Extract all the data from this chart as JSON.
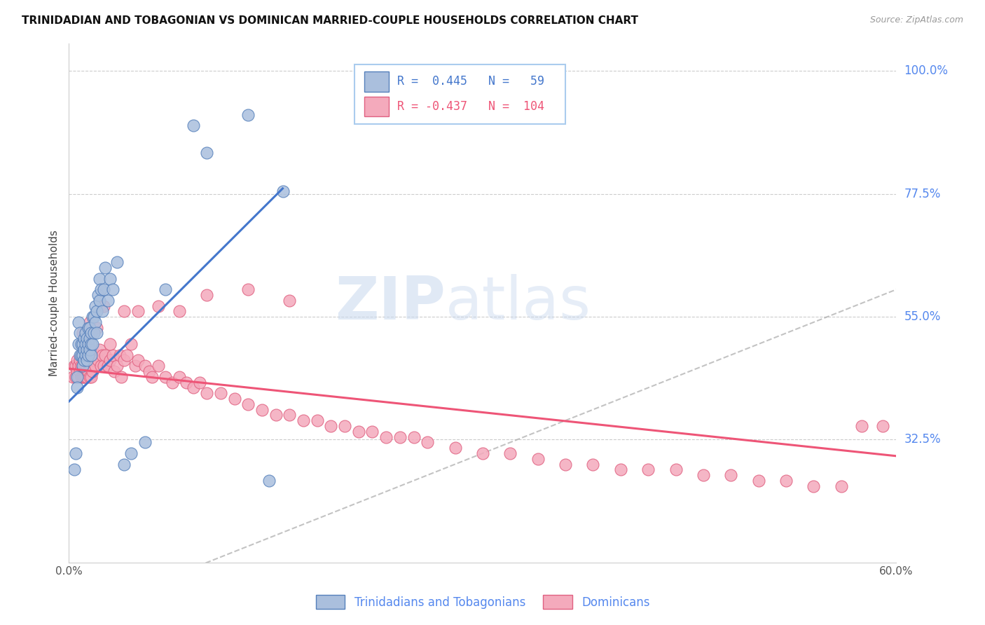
{
  "title": "TRINIDADIAN AND TOBAGONIAN VS DOMINICAN MARRIED-COUPLE HOUSEHOLDS CORRELATION CHART",
  "source": "Source: ZipAtlas.com",
  "ylabel": "Married-couple Households",
  "ytick_labels": [
    "32.5%",
    "55.0%",
    "77.5%",
    "100.0%"
  ],
  "ytick_values": [
    0.325,
    0.55,
    0.775,
    1.0
  ],
  "xlim": [
    0.0,
    0.6
  ],
  "ylim": [
    0.1,
    1.05
  ],
  "blue_R": 0.445,
  "blue_N": 59,
  "pink_R": -0.437,
  "pink_N": 104,
  "blue_color": "#AABFDD",
  "pink_color": "#F4AABC",
  "blue_edge_color": "#5580BB",
  "pink_edge_color": "#E06080",
  "blue_line_color": "#4477CC",
  "pink_line_color": "#EE5577",
  "legend_blue_label": "Trinidadians and Tobagonians",
  "legend_pink_label": "Dominicans",
  "blue_line_x0": 0.0,
  "blue_line_y0": 0.395,
  "blue_line_x1": 0.155,
  "blue_line_y1": 0.785,
  "pink_line_x0": 0.0,
  "pink_line_y0": 0.455,
  "pink_line_x1": 0.6,
  "pink_line_y1": 0.295,
  "blue_scatter_x": [
    0.004,
    0.005,
    0.006,
    0.006,
    0.007,
    0.007,
    0.008,
    0.008,
    0.009,
    0.009,
    0.01,
    0.01,
    0.01,
    0.011,
    0.011,
    0.011,
    0.012,
    0.012,
    0.012,
    0.013,
    0.013,
    0.013,
    0.014,
    0.014,
    0.014,
    0.015,
    0.015,
    0.015,
    0.016,
    0.016,
    0.016,
    0.017,
    0.017,
    0.018,
    0.018,
    0.019,
    0.019,
    0.02,
    0.02,
    0.021,
    0.022,
    0.022,
    0.023,
    0.024,
    0.025,
    0.026,
    0.028,
    0.03,
    0.032,
    0.035,
    0.04,
    0.045,
    0.055,
    0.07,
    0.09,
    0.1,
    0.13,
    0.145,
    0.155
  ],
  "blue_scatter_y": [
    0.27,
    0.3,
    0.44,
    0.42,
    0.5,
    0.54,
    0.48,
    0.52,
    0.48,
    0.5,
    0.46,
    0.48,
    0.5,
    0.47,
    0.49,
    0.51,
    0.48,
    0.5,
    0.52,
    0.47,
    0.49,
    0.51,
    0.48,
    0.5,
    0.53,
    0.49,
    0.51,
    0.53,
    0.48,
    0.5,
    0.52,
    0.5,
    0.55,
    0.52,
    0.55,
    0.54,
    0.57,
    0.52,
    0.56,
    0.59,
    0.58,
    0.62,
    0.6,
    0.56,
    0.6,
    0.64,
    0.58,
    0.62,
    0.6,
    0.65,
    0.28,
    0.3,
    0.32,
    0.6,
    0.9,
    0.85,
    0.92,
    0.25,
    0.78
  ],
  "pink_scatter_x": [
    0.003,
    0.004,
    0.005,
    0.005,
    0.006,
    0.006,
    0.007,
    0.007,
    0.008,
    0.008,
    0.009,
    0.009,
    0.01,
    0.01,
    0.011,
    0.011,
    0.012,
    0.012,
    0.013,
    0.013,
    0.014,
    0.014,
    0.015,
    0.015,
    0.016,
    0.016,
    0.017,
    0.018,
    0.019,
    0.02,
    0.021,
    0.022,
    0.023,
    0.024,
    0.025,
    0.026,
    0.028,
    0.03,
    0.032,
    0.033,
    0.035,
    0.037,
    0.038,
    0.04,
    0.042,
    0.045,
    0.048,
    0.05,
    0.055,
    0.058,
    0.06,
    0.065,
    0.07,
    0.075,
    0.08,
    0.085,
    0.09,
    0.095,
    0.1,
    0.11,
    0.12,
    0.13,
    0.14,
    0.15,
    0.16,
    0.17,
    0.18,
    0.19,
    0.2,
    0.21,
    0.22,
    0.23,
    0.24,
    0.25,
    0.26,
    0.28,
    0.3,
    0.32,
    0.34,
    0.36,
    0.38,
    0.4,
    0.42,
    0.44,
    0.46,
    0.48,
    0.5,
    0.52,
    0.54,
    0.56,
    0.575,
    0.59,
    0.01,
    0.015,
    0.02,
    0.025,
    0.03,
    0.04,
    0.05,
    0.065,
    0.08,
    0.1,
    0.13,
    0.16
  ],
  "pink_scatter_y": [
    0.44,
    0.46,
    0.44,
    0.46,
    0.45,
    0.47,
    0.44,
    0.46,
    0.45,
    0.47,
    0.44,
    0.46,
    0.44,
    0.46,
    0.44,
    0.46,
    0.44,
    0.46,
    0.44,
    0.46,
    0.45,
    0.47,
    0.44,
    0.46,
    0.44,
    0.46,
    0.45,
    0.47,
    0.46,
    0.48,
    0.47,
    0.49,
    0.46,
    0.48,
    0.46,
    0.48,
    0.46,
    0.47,
    0.48,
    0.45,
    0.46,
    0.48,
    0.44,
    0.47,
    0.48,
    0.5,
    0.46,
    0.47,
    0.46,
    0.45,
    0.44,
    0.46,
    0.44,
    0.43,
    0.44,
    0.43,
    0.42,
    0.43,
    0.41,
    0.41,
    0.4,
    0.39,
    0.38,
    0.37,
    0.37,
    0.36,
    0.36,
    0.35,
    0.35,
    0.34,
    0.34,
    0.33,
    0.33,
    0.33,
    0.32,
    0.31,
    0.3,
    0.3,
    0.29,
    0.28,
    0.28,
    0.27,
    0.27,
    0.27,
    0.26,
    0.26,
    0.25,
    0.25,
    0.24,
    0.24,
    0.35,
    0.35,
    0.52,
    0.54,
    0.53,
    0.57,
    0.5,
    0.56,
    0.56,
    0.57,
    0.56,
    0.59,
    0.6,
    0.58
  ]
}
